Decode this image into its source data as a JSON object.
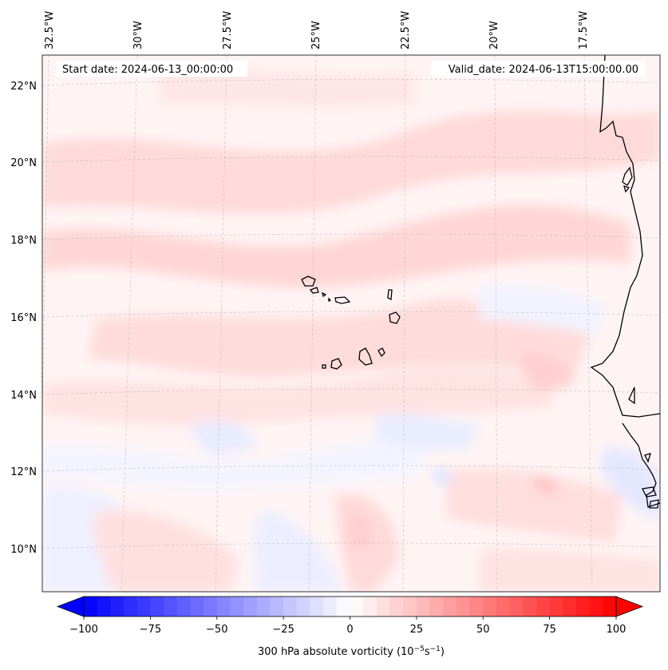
{
  "header": {
    "start_date": "Start date: 2024-06-13_00:00:00",
    "valid_date": "Valid_date: 2024-06-13T15:00:00.00"
  },
  "longitude_labels": [
    "32.5°W",
    "30°W",
    "27.5°W",
    "25°W",
    "22.5°W",
    "20°W",
    "17.5°W"
  ],
  "latitude_labels": [
    "22°N",
    "20°N",
    "18°N",
    "16°N",
    "14°N",
    "12°N",
    "10°N"
  ],
  "colorbar": {
    "label": "300 hPa absolute vorticity (10",
    "label_exp1": "−5",
    "label_mid": "s",
    "label_exp2": "−1",
    "label_end": ")",
    "min": -100,
    "max": 100,
    "ticks": [
      -100,
      -75,
      -50,
      -25,
      0,
      25,
      50,
      75,
      100
    ],
    "tick_labels": [
      "−100",
      "−75",
      "−50",
      "−25",
      "0",
      "25",
      "50",
      "75",
      "100"
    ],
    "low_color": "#0000ff",
    "mid_color": "#ffffff",
    "high_color": "#ff0000",
    "levels": 40
  },
  "coast_color": "#000000",
  "grid_color": "#bbbbbb"
}
